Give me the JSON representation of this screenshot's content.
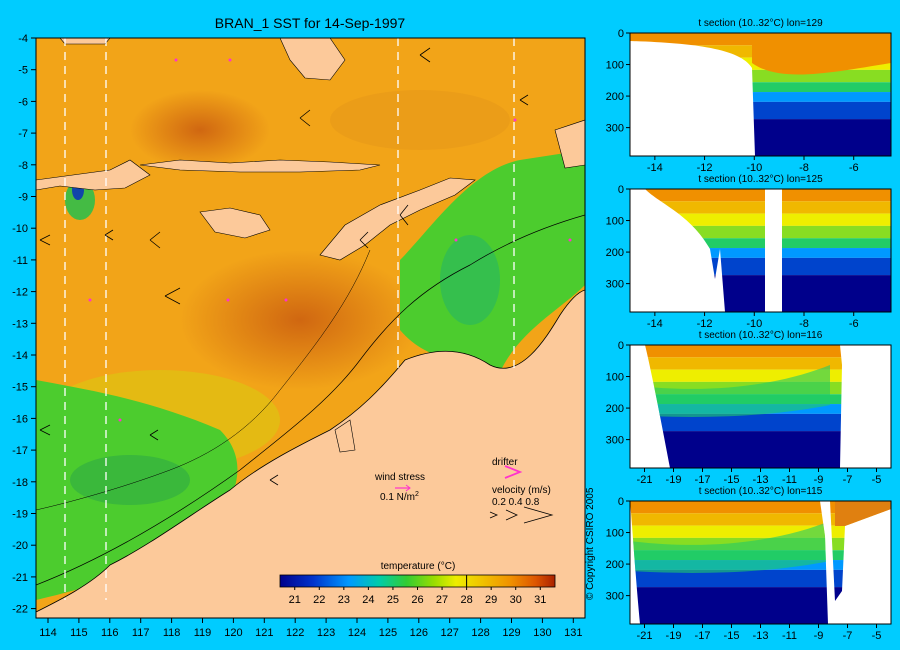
{
  "map": {
    "title": "BRAN_1 SST for 14-Sep-1997",
    "lon_ticks": [
      "114",
      "115",
      "116",
      "117",
      "118",
      "119",
      "120",
      "121",
      "122",
      "123",
      "124",
      "125",
      "126",
      "127",
      "128",
      "129",
      "130",
      "131"
    ],
    "lat_ticks": [
      "-4",
      "-5",
      "-6",
      "-7",
      "-8",
      "-9",
      "-10",
      "-11",
      "-12",
      "-13",
      "-14",
      "-15",
      "-16",
      "-17",
      "-18",
      "-19",
      "-20",
      "-21",
      "-22"
    ],
    "section_lons": [
      114.6,
      115.8,
      125.5,
      129.2
    ],
    "land_color": "#fcc99a",
    "ocean_warm": "#f2a418",
    "ocean_cool": "#4ccc2e"
  },
  "legend": {
    "wind_stress_label": "wind stress",
    "wind_stress_value": "0.1 N/m",
    "wind_stress_sup": "2",
    "drifter_label": "drifter",
    "velocity_label": "velocity (m/s)",
    "velocity_values": "0.2 0.4 0.8",
    "drifter_color": "#ff33cc"
  },
  "colorbar": {
    "title": "temperature (°C)",
    "ticks": [
      "21",
      "22",
      "23",
      "24",
      "25",
      "26",
      "27",
      "28",
      "29",
      "30",
      "31"
    ],
    "range": [
      20.4,
      31.6
    ],
    "marker_value": 28.0
  },
  "sections": [
    {
      "title": "t section (10..32°C) lon=129",
      "x_ticks": [
        "-14",
        "-12",
        "-10",
        "-8",
        "-6"
      ],
      "x_range": [
        -15,
        -4.5
      ],
      "y_ticks": [
        "0",
        "100",
        "200",
        "300"
      ]
    },
    {
      "title": "t section (10..32°C) lon=125",
      "x_ticks": [
        "-14",
        "-12",
        "-10",
        "-8",
        "-6"
      ],
      "x_range": [
        -15,
        -4.5
      ],
      "y_ticks": [
        "0",
        "100",
        "200",
        "300"
      ]
    },
    {
      "title": "t section (10..32°C) lon=116",
      "x_ticks": [
        "-21",
        "-19",
        "-17",
        "-15",
        "-13",
        "-11",
        "-9",
        "-7",
        "-5"
      ],
      "x_range": [
        -22,
        -4
      ],
      "y_ticks": [
        "0",
        "100",
        "200",
        "300"
      ]
    },
    {
      "title": "t section (10..32°C) lon=115",
      "x_ticks": [
        "-21",
        "-19",
        "-17",
        "-15",
        "-13",
        "-11",
        "-9",
        "-7",
        "-5"
      ],
      "x_range": [
        -22,
        -4
      ],
      "y_ticks": [
        "0",
        "100",
        "200",
        "300"
      ]
    }
  ],
  "copyright": "© Copyright CSIRO 2005"
}
